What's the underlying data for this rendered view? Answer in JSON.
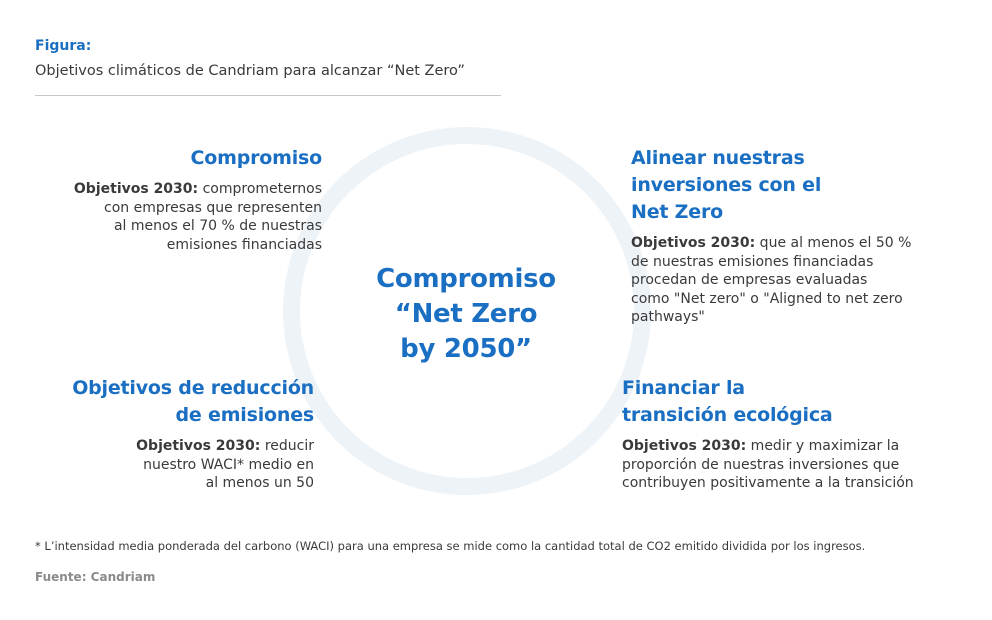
{
  "figure": {
    "label": "Figura:",
    "title": "Objetivos climáticos de Candriam para alcanzar “Net Zero”"
  },
  "center": {
    "lines": [
      "Compromiso",
      "“Net Zero",
      "by 2050”"
    ]
  },
  "blocks": {
    "top_left": {
      "title_lines": [
        "Compromiso"
      ],
      "lead": "Objetivos 2030:",
      "body_lines": [
        " comprometernos",
        "con empresas que representen",
        "al menos el 70 % de nuestras",
        "emisiones financiadas"
      ]
    },
    "top_right": {
      "title_lines": [
        "Alinear nuestras",
        "inversiones con el",
        "Net Zero"
      ],
      "lead": "Objetivos 2030:",
      "body_lines": [
        " que al menos el 50 %",
        "de nuestras emisiones financiadas",
        "procedan de empresas evaluadas",
        "como \"Net zero\" o \"Aligned to net zero",
        "pathways\""
      ]
    },
    "bottom_left": {
      "title_lines": [
        "Objetivos de reducción",
        "de emisiones"
      ],
      "lead": "Objetivos 2030:",
      "body_lines": [
        " reducir",
        "nuestro WACI* medio en",
        "al menos un 50"
      ]
    },
    "bottom_right": {
      "title_lines": [
        "Financiar la",
        "transición ecológica"
      ],
      "lead": "Objetivos 2030:",
      "body_lines": [
        " medir y maximizar la",
        "proporción de nuestras inversiones que",
        "contribuyen positivamente a la transición"
      ]
    }
  },
  "footnote": "* L’intensidad media ponderada del carbono (WACI) para una empresa se mide como la cantidad total de CO2 emitido dividida por los ingresos.",
  "source": "Fuente: Candriam",
  "colors": {
    "accent": "#1a6fc2",
    "ring": "#eef3f8",
    "text": "#3a3a3a"
  }
}
